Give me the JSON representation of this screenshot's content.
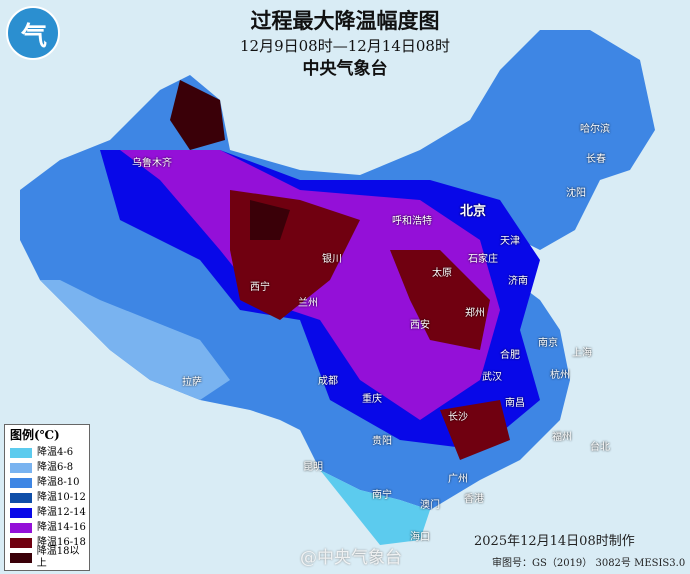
{
  "title": "过程最大降温幅度图",
  "subtitle": "12月9日08时—12月14日08时",
  "issuer": "中央气象台",
  "logo_icon": "cma-logo",
  "legend": {
    "title": "图例(℃)",
    "items": [
      {
        "label": "降温4-6",
        "color": "#5ccbee"
      },
      {
        "label": "降温6-8",
        "color": "#79b3f0"
      },
      {
        "label": "降温8-10",
        "color": "#3e86e4"
      },
      {
        "label": "降温10-12",
        "color": "#0f4ea8"
      },
      {
        "label": "降温12-14",
        "color": "#0808e8"
      },
      {
        "label": "降温14-16",
        "color": "#9410d8"
      },
      {
        "label": "降温16-18",
        "color": "#700010"
      },
      {
        "label": "降温18以上",
        "color": "#3a0008"
      }
    ]
  },
  "cities": [
    "乌鲁木齐",
    "拉萨",
    "西宁",
    "兰州",
    "银川",
    "呼和浩特",
    "北京",
    "天津",
    "太原",
    "石家庄",
    "济南",
    "郑州",
    "西安",
    "成都",
    "重庆",
    "贵阳",
    "昆明",
    "南宁",
    "广州",
    "澳门",
    "香港",
    "海口",
    "长沙",
    "武汉",
    "合肥",
    "南京",
    "上海",
    "杭州",
    "南昌",
    "福州",
    "台北",
    "哈尔滨",
    "长春",
    "沈阳"
  ],
  "footer": {
    "made": "2025年12月14日08时制作",
    "review": "审图号：GS（2019） 3082号 MESIS3.0",
    "watermark": "@中央气象台"
  }
}
